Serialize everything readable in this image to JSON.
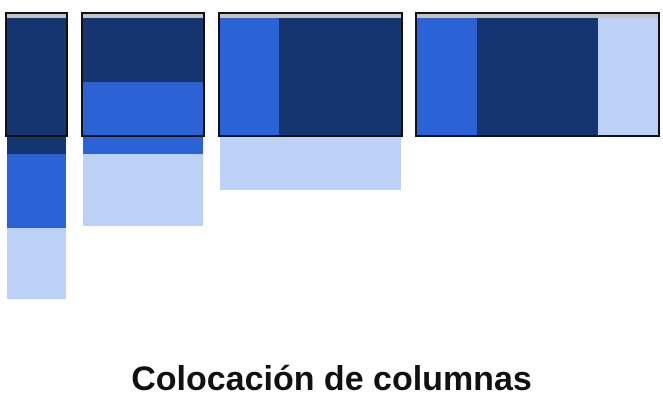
{
  "caption": "Colocación de columnas",
  "colors": {
    "dark": "#14356f",
    "medium": "#2b62d6",
    "light": "#bcd1f5",
    "frame": "#111111",
    "topline": "#bfc5cd"
  }
}
